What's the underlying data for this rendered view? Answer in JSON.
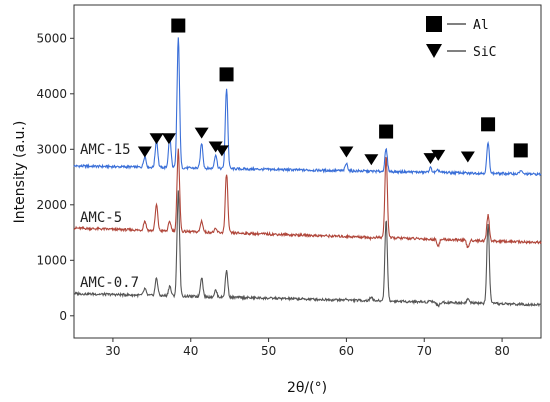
{
  "chart_data": {
    "type": "line",
    "xlabel": "2θ/(°)",
    "ylabel": "Intensity  (a.u.)",
    "xlim": [
      25,
      85
    ],
    "ylim": [
      -400,
      5600
    ],
    "xticks": [
      30,
      40,
      50,
      60,
      70,
      80
    ],
    "yticks": [
      0,
      1000,
      2000,
      3000,
      4000,
      5000
    ],
    "grid": false,
    "legend_position": "top-right",
    "legend": [
      {
        "marker": "square",
        "label": "Al"
      },
      {
        "marker": "triangle-down",
        "label": "SiC"
      }
    ],
    "colors": {
      "AMC-15": "#3a6fd8",
      "AMC-5": "#b0463a",
      "AMC-0.7": "#555555"
    },
    "series": [
      {
        "name": "AMC-15",
        "color": "#3a6fd8",
        "baseline_start": 2700,
        "baseline_end": 2550,
        "peaks": [
          {
            "x": 34.1,
            "y": 2900
          },
          {
            "x": 35.6,
            "y": 3200
          },
          {
            "x": 37.3,
            "y": 3250
          },
          {
            "x": 38.4,
            "y": 5050
          },
          {
            "x": 41.4,
            "y": 3150
          },
          {
            "x": 43.2,
            "y": 2950
          },
          {
            "x": 44.6,
            "y": 4150
          },
          {
            "x": 60.0,
            "y": 2830
          },
          {
            "x": 65.1,
            "y": 3100
          },
          {
            "x": 70.8,
            "y": 2780
          },
          {
            "x": 71.8,
            "y": 2740
          },
          {
            "x": 75.6,
            "y": 2690
          },
          {
            "x": 78.2,
            "y": 3250
          },
          {
            "x": 82.4,
            "y": 2760
          }
        ]
      },
      {
        "name": "AMC-5",
        "color": "#b0463a",
        "baseline_start": 1580,
        "baseline_end": 1320,
        "peaks": [
          {
            "x": 34.1,
            "y": 1750
          },
          {
            "x": 35.6,
            "y": 2050
          },
          {
            "x": 37.3,
            "y": 1750
          },
          {
            "x": 38.4,
            "y": 3050
          },
          {
            "x": 41.4,
            "y": 1780
          },
          {
            "x": 43.2,
            "y": 1640
          },
          {
            "x": 44.6,
            "y": 2650
          },
          {
            "x": 60.0,
            "y": 1580
          },
          {
            "x": 63.2,
            "y": 1560
          },
          {
            "x": 65.1,
            "y": 3050
          },
          {
            "x": 70.8,
            "y": 1570
          },
          {
            "x": 71.8,
            "y": 1470
          },
          {
            "x": 75.6,
            "y": 1450
          },
          {
            "x": 78.2,
            "y": 2050
          }
        ]
      },
      {
        "name": "AMC-0.7",
        "color": "#555555",
        "baseline_start": 400,
        "baseline_end": 200,
        "peaks": [
          {
            "x": 34.1,
            "y": 520
          },
          {
            "x": 35.6,
            "y": 720
          },
          {
            "x": 37.3,
            "y": 580
          },
          {
            "x": 38.4,
            "y": 2300
          },
          {
            "x": 41.4,
            "y": 750
          },
          {
            "x": 43.2,
            "y": 520
          },
          {
            "x": 44.6,
            "y": 880
          },
          {
            "x": 60.0,
            "y": 420
          },
          {
            "x": 63.2,
            "y": 470
          },
          {
            "x": 65.1,
            "y": 1850
          },
          {
            "x": 70.8,
            "y": 430
          },
          {
            "x": 71.8,
            "y": 330
          },
          {
            "x": 75.6,
            "y": 470
          },
          {
            "x": 78.2,
            "y": 1850
          }
        ]
      }
    ],
    "annotations": {
      "Al_markers": [
        {
          "x": 38.4,
          "y": 5230
        },
        {
          "x": 44.6,
          "y": 4350
        },
        {
          "x": 65.1,
          "y": 3320
        },
        {
          "x": 78.2,
          "y": 3450
        },
        {
          "x": 82.4,
          "y": 2980
        }
      ],
      "SiC_markers": [
        {
          "x": 34.1,
          "y": 2960
        },
        {
          "x": 35.6,
          "y": 3200
        },
        {
          "x": 37.2,
          "y": 3200
        },
        {
          "x": 41.4,
          "y": 3300
        },
        {
          "x": 43.2,
          "y": 3050
        },
        {
          "x": 44.0,
          "y": 2980
        },
        {
          "x": 60.0,
          "y": 2960
        },
        {
          "x": 63.2,
          "y": 2820
        },
        {
          "x": 70.8,
          "y": 2840
        },
        {
          "x": 71.8,
          "y": 2900
        },
        {
          "x": 75.6,
          "y": 2870
        }
      ]
    }
  }
}
